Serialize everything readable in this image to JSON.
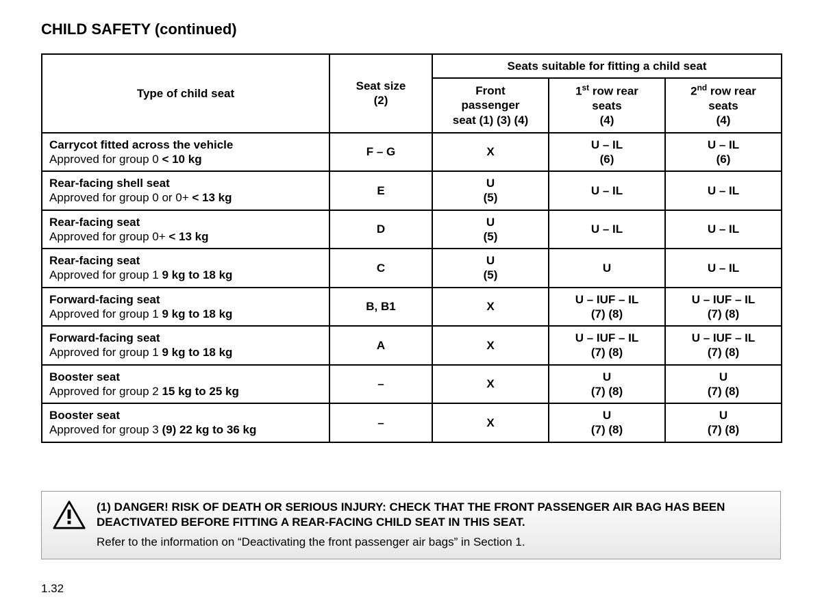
{
  "title_main": "CHILD SAFETY",
  "title_cont": "(continued)",
  "headers": {
    "type": "Type of child seat",
    "size_line1": "Seat size",
    "size_line2": "(2)",
    "suitable": "Seats suitable for fitting a child seat",
    "front_l1": "Front",
    "front_l2": "passenger",
    "front_l3": "seat (1) (3) (4)",
    "row1_pre": "1",
    "row1_sup": "st",
    "row1_post": " row rear",
    "row1_l2": "seats",
    "row1_l3": "(4)",
    "row2_pre": "2",
    "row2_sup": "nd",
    "row2_post": " row rear",
    "row2_l2": "seats",
    "row2_l3": "(4)"
  },
  "rows": [
    {
      "name": "Carrycot fitted across the vehicle",
      "approved_pre": "Approved for group 0 ",
      "approved_bold": "< 10 kg",
      "size": "F – G",
      "front": "X",
      "front_sub": "",
      "r1": "U – IL",
      "r1_sub": "(6)",
      "r2": "U – IL",
      "r2_sub": "(6)"
    },
    {
      "name": "Rear-facing shell seat",
      "approved_pre": "Approved for group 0 or 0+ ",
      "approved_bold": "< 13 kg",
      "size": "E",
      "front": "U",
      "front_sub": "(5)",
      "r1": "U – IL",
      "r1_sub": "",
      "r2": "U – IL",
      "r2_sub": ""
    },
    {
      "name": "Rear-facing seat",
      "approved_pre": "Approved for group 0+ ",
      "approved_bold": "< 13 kg",
      "size": "D",
      "front": "U",
      "front_sub": "(5)",
      "r1": "U – IL",
      "r1_sub": "",
      "r2": "U – IL",
      "r2_sub": ""
    },
    {
      "name": "Rear-facing seat",
      "approved_pre": "Approved for group 1 ",
      "approved_bold": "9 kg to 18 kg",
      "size": "C",
      "front": "U",
      "front_sub": "(5)",
      "r1": "U",
      "r1_sub": "",
      "r2": "U – IL",
      "r2_sub": ""
    },
    {
      "name": "Forward-facing seat",
      "approved_pre": "Approved for group 1 ",
      "approved_bold": "9 kg to 18 kg",
      "size": "B, B1",
      "front": "X",
      "front_sub": "",
      "r1": "U – IUF – IL",
      "r1_sub": "(7) (8)",
      "r2": "U – IUF – IL",
      "r2_sub": "(7) (8)"
    },
    {
      "name": "Forward-facing seat",
      "approved_pre": "Approved for group 1 ",
      "approved_bold": "9 kg to 18 kg",
      "size": "A",
      "front": "X",
      "front_sub": "",
      "r1": "U – IUF – IL",
      "r1_sub": "(7) (8)",
      "r2": "U – IUF – IL",
      "r2_sub": "(7) (8)"
    },
    {
      "name": "Booster seat",
      "approved_pre": "Approved for group 2 ",
      "approved_bold": "15 kg to 25 kg",
      "size": "–",
      "front": "X",
      "front_sub": "",
      "r1": "U",
      "r1_sub": "(7) (8)",
      "r2": "U",
      "r2_sub": "(7) (8)"
    },
    {
      "name": "Booster seat",
      "approved_pre": "Approved for group 3 ",
      "approved_bold": "(9) 22 kg to 36 kg",
      "size": "–",
      "front": "X",
      "front_sub": "",
      "r1": "U",
      "r1_sub": "(7) (8)",
      "r2": "U",
      "r2_sub": "(7) (8)"
    }
  ],
  "warning": {
    "danger": "(1) DANGER! RISK OF DEATH OR SERIOUS INJURY: CHECK THAT THE FRONT PASSENGER AIR BAG HAS BEEN DEACTIVATED BEFORE FITTING A REAR-FACING CHILD SEAT IN THIS SEAT.",
    "refer": "Refer to the information on “Deactivating the front passenger air bags” in Section 1."
  },
  "page_number": "1.32"
}
